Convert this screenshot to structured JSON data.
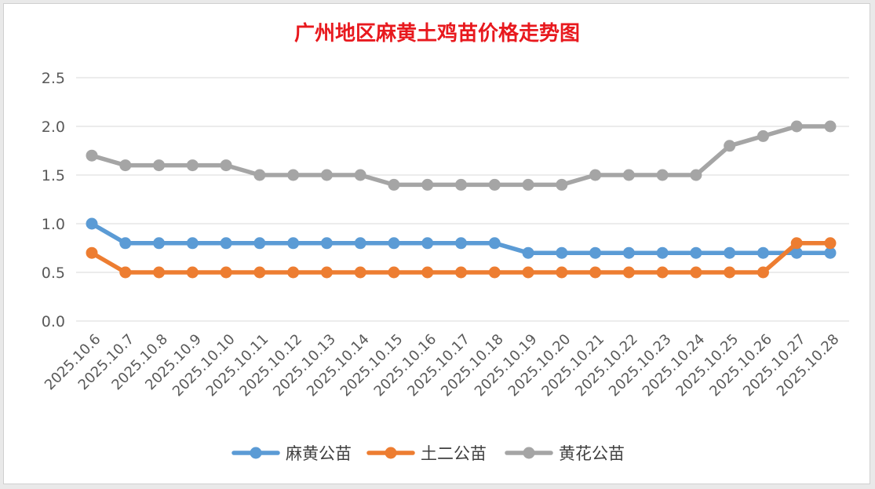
{
  "colors": {
    "title": "#e8191e",
    "grid": "#d9d9d9",
    "axis_text": "#595959",
    "series": [
      "#5b9bd5",
      "#ed7d31",
      "#a5a5a5"
    ]
  },
  "chart_data": {
    "type": "line",
    "title": "广州地区麻黄土鸡苗价格走势图",
    "xlabel": "",
    "ylabel": "",
    "ylim": [
      0,
      2.5
    ],
    "yticks": [
      "0.0",
      "0.5",
      "1.0",
      "1.5",
      "2.0",
      "2.5"
    ],
    "grid": true,
    "legend_position": "bottom",
    "categories": [
      "2025.10.6",
      "2025.10.7",
      "2025.10.8",
      "2025.10.9",
      "2025.10.10",
      "2025.10.11",
      "2025.10.12",
      "2025.10.13",
      "2025.10.14",
      "2025.10.15",
      "2025.10.16",
      "2025.10.17",
      "2025.10.18",
      "2025.10.19",
      "2025.10.20",
      "2025.10.21",
      "2025.10.22",
      "2025.10.23",
      "2025.10.24",
      "2025.10.25",
      "2025.10.26",
      "2025.10.27",
      "2025.10.28"
    ],
    "series": [
      {
        "name": "麻黄公苗",
        "color": "#5b9bd5",
        "values": [
          1.0,
          0.8,
          0.8,
          0.8,
          0.8,
          0.8,
          0.8,
          0.8,
          0.8,
          0.8,
          0.8,
          0.8,
          0.8,
          0.7,
          0.7,
          0.7,
          0.7,
          0.7,
          0.7,
          0.7,
          0.7,
          0.7,
          0.7
        ]
      },
      {
        "name": "土二公苗",
        "color": "#ed7d31",
        "values": [
          0.7,
          0.5,
          0.5,
          0.5,
          0.5,
          0.5,
          0.5,
          0.5,
          0.5,
          0.5,
          0.5,
          0.5,
          0.5,
          0.5,
          0.5,
          0.5,
          0.5,
          0.5,
          0.5,
          0.5,
          0.5,
          0.8,
          0.8
        ]
      },
      {
        "name": "黄花公苗",
        "color": "#a5a5a5",
        "values": [
          1.7,
          1.6,
          1.6,
          1.6,
          1.6,
          1.5,
          1.5,
          1.5,
          1.5,
          1.4,
          1.4,
          1.4,
          1.4,
          1.4,
          1.4,
          1.5,
          1.5,
          1.5,
          1.5,
          1.8,
          1.9,
          2.0,
          2.0
        ]
      }
    ]
  }
}
